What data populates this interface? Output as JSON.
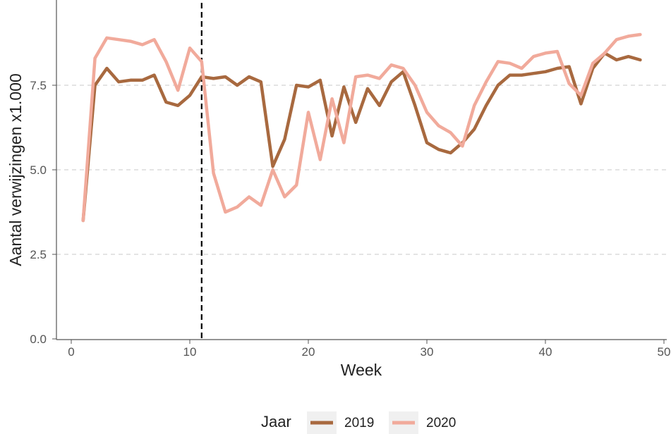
{
  "chart_data": {
    "type": "line",
    "xlabel": "Week",
    "ylabel": "Aantal verwijzingen x1.000",
    "xlim": [
      0,
      50
    ],
    "ylim": [
      0,
      10
    ],
    "x_ticks": [
      0,
      10,
      20,
      30,
      40,
      50
    ],
    "x_tick_labels": [
      "0",
      "10",
      "20",
      "30",
      "40",
      "50"
    ],
    "y_ticks": [
      0,
      2.5,
      5,
      7.5
    ],
    "y_tick_labels": [
      "0.0",
      "2.5",
      "5.0",
      "7.5"
    ],
    "grid": "horizontal dashed",
    "vline": {
      "x": 11,
      "style": "dashed",
      "color": "#000000"
    },
    "legend": {
      "title": "Jaar",
      "position": "bottom"
    },
    "series": [
      {
        "name": "2019",
        "color": "#a8693f",
        "x": [
          1,
          2,
          3,
          4,
          5,
          6,
          7,
          8,
          9,
          10,
          11,
          12,
          13,
          14,
          15,
          16,
          17,
          18,
          19,
          20,
          21,
          22,
          23,
          24,
          25,
          26,
          27,
          28,
          29,
          30,
          31,
          32,
          33,
          34,
          35,
          36,
          37,
          38,
          39,
          40,
          41,
          42,
          43,
          44,
          45,
          46,
          47,
          48
        ],
        "values": [
          3.5,
          7.5,
          8.0,
          7.6,
          7.65,
          7.65,
          7.8,
          7.0,
          6.9,
          7.2,
          7.75,
          7.7,
          7.75,
          7.5,
          7.75,
          7.6,
          5.1,
          5.9,
          7.5,
          7.45,
          7.65,
          6.0,
          7.45,
          6.4,
          7.4,
          6.9,
          7.6,
          7.9,
          6.9,
          5.8,
          5.6,
          5.5,
          5.8,
          6.2,
          6.9,
          7.5,
          7.8,
          7.8,
          7.85,
          7.9,
          8.0,
          8.05,
          6.95,
          8.0,
          8.45,
          8.25,
          8.35,
          8.25
        ]
      },
      {
        "name": "2020",
        "color": "#f1aa9b",
        "x": [
          1,
          2,
          3,
          4,
          5,
          6,
          7,
          8,
          9,
          10,
          11,
          12,
          13,
          14,
          15,
          16,
          17,
          18,
          19,
          20,
          21,
          22,
          23,
          24,
          25,
          26,
          27,
          28,
          29,
          30,
          31,
          32,
          33,
          34,
          35,
          36,
          37,
          38,
          39,
          40,
          41,
          42,
          43,
          44,
          45,
          46,
          47,
          48
        ],
        "values": [
          3.5,
          8.3,
          8.9,
          8.85,
          8.8,
          8.7,
          8.85,
          8.2,
          7.35,
          8.6,
          8.2,
          4.9,
          3.75,
          3.9,
          4.2,
          3.95,
          5.0,
          4.2,
          4.55,
          6.7,
          5.3,
          7.1,
          5.8,
          7.75,
          7.8,
          7.7,
          8.1,
          8.0,
          7.5,
          6.7,
          6.3,
          6.1,
          5.7,
          6.9,
          7.6,
          8.2,
          8.15,
          8.0,
          8.35,
          8.45,
          8.5,
          7.55,
          7.2,
          8.15,
          8.45,
          8.85,
          8.95,
          9.0
        ]
      }
    ]
  }
}
